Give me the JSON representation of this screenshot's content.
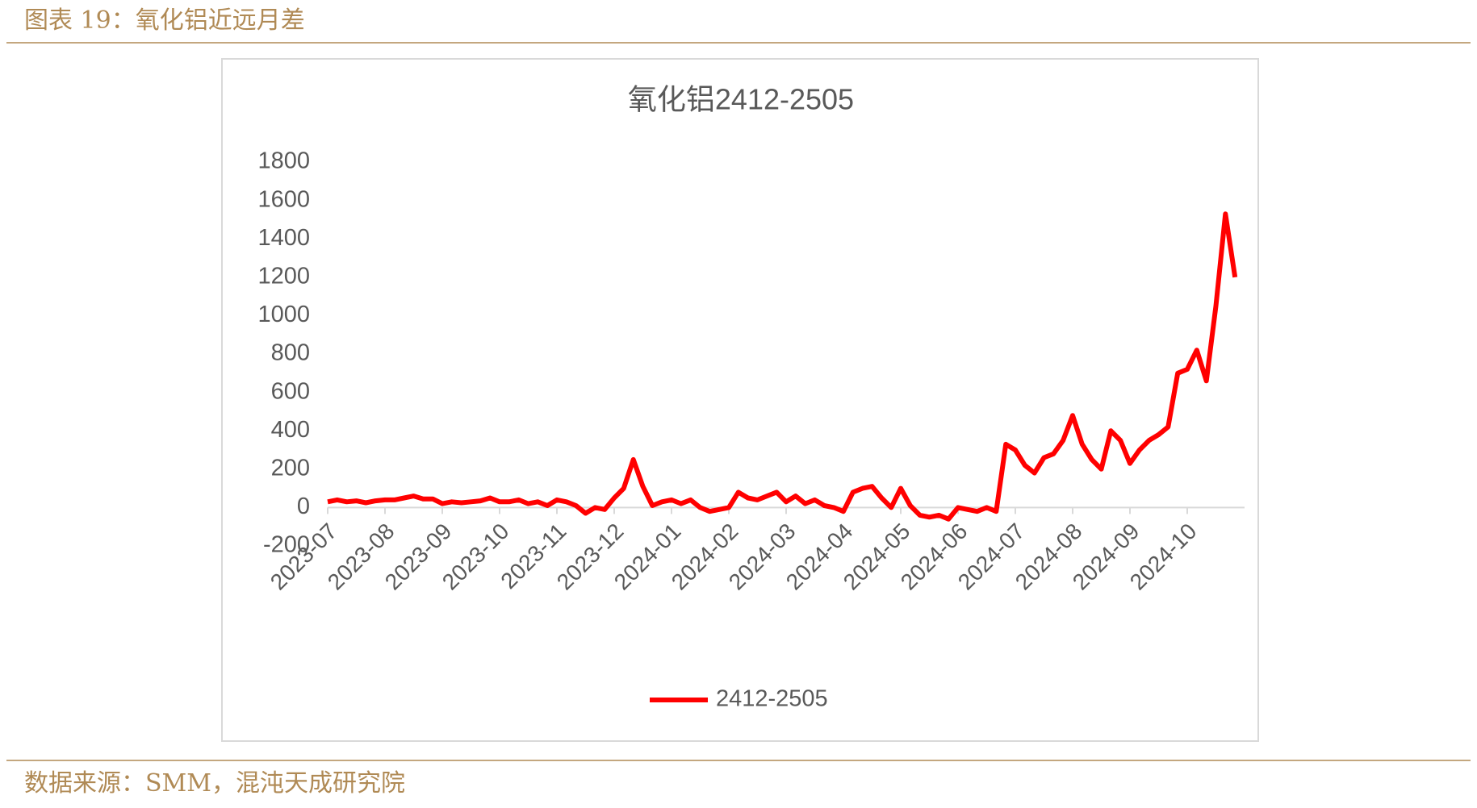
{
  "header": {
    "title": "图表 19：氧化铝近远月差"
  },
  "footer": {
    "source": "数据来源：SMM，混沌天成研究院"
  },
  "chart_data": {
    "type": "line",
    "title": "氧化铝2412-2505",
    "categories": [
      "2023-07",
      null,
      null,
      null,
      null,
      null,
      "2023-08",
      null,
      null,
      null,
      null,
      null,
      "2023-09",
      null,
      null,
      null,
      null,
      null,
      "2023-10",
      null,
      null,
      null,
      null,
      null,
      "2023-11",
      null,
      null,
      null,
      null,
      null,
      "2023-12",
      null,
      null,
      null,
      null,
      null,
      "2024-01",
      null,
      null,
      null,
      null,
      null,
      "2024-02",
      null,
      null,
      null,
      null,
      null,
      "2024-03",
      null,
      null,
      null,
      null,
      null,
      "2024-04",
      null,
      null,
      null,
      null,
      null,
      "2024-05",
      null,
      null,
      null,
      null,
      null,
      "2024-06",
      null,
      null,
      null,
      null,
      null,
      "2024-07",
      null,
      null,
      null,
      null,
      null,
      "2024-08",
      null,
      null,
      null,
      null,
      null,
      "2024-09",
      null,
      null,
      null,
      null,
      null,
      "2024-10",
      null,
      null,
      null,
      null,
      null
    ],
    "series": [
      {
        "name": "2412-2505",
        "color": "#ff0000",
        "values": [
          30,
          40,
          30,
          35,
          25,
          35,
          40,
          40,
          50,
          60,
          45,
          45,
          20,
          30,
          25,
          30,
          35,
          50,
          30,
          30,
          40,
          20,
          30,
          10,
          40,
          30,
          10,
          -30,
          0,
          -10,
          50,
          100,
          250,
          110,
          10,
          30,
          40,
          20,
          40,
          0,
          -20,
          -10,
          0,
          80,
          50,
          40,
          60,
          80,
          30,
          60,
          20,
          40,
          10,
          0,
          -20,
          80,
          100,
          110,
          50,
          0,
          100,
          10,
          -40,
          -50,
          -40,
          -60,
          0,
          -10,
          -20,
          0,
          -20,
          330,
          300,
          220,
          180,
          260,
          280,
          350,
          480,
          330,
          250,
          200,
          400,
          350,
          230,
          300,
          350,
          380,
          420,
          700,
          720,
          820,
          660,
          1050,
          1530,
          1200
        ]
      }
    ],
    "ylim": [
      -200,
      1800
    ],
    "yticks": [
      -200,
      0,
      200,
      400,
      600,
      800,
      1000,
      1200,
      1400,
      1600,
      1800
    ],
    "legend": "bottom"
  }
}
